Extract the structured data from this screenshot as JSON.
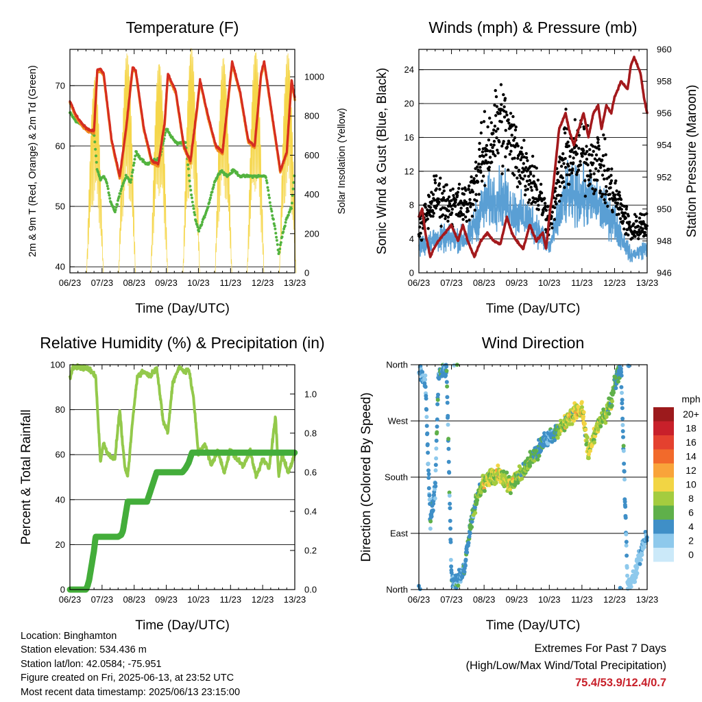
{
  "colors": {
    "temp_red": "#d62d20",
    "temp_orange": "#f08a1f",
    "dewpoint_green": "#52b33f",
    "solar_yellow": "#f5d64a",
    "wind_blue": "#5a9fd4",
    "gust_black": "#000000",
    "pressure_maroon": "#a3191c",
    "rh_green": "#93c94b",
    "precip_green": "#43ad3a",
    "extremes_red": "#c8202a"
  },
  "x_ticks": [
    "06/23",
    "07/23",
    "08/23",
    "09/23",
    "10/23",
    "11/23",
    "12/23",
    "13/23"
  ],
  "x_label": "Time (Day/UTC)",
  "chart_data": [
    {
      "type": "line",
      "title": "Temperature (F)",
      "xlabel": "Time (Day/UTC)",
      "ylabel": "2m & 9m T (Red, Orange) & 2m Td (Green)",
      "ylabel_right": "Solar Insolation (Yellow)",
      "ylim": [
        39,
        76
      ],
      "yticks": [
        40,
        50,
        60,
        70
      ],
      "ylim_right": [
        0,
        1140
      ],
      "yticks_right": [
        0,
        200,
        400,
        600,
        800,
        1000
      ],
      "x_unit": "day",
      "x_range": [
        "06/23",
        "13/23"
      ],
      "series": [
        {
          "role": "temperature_2m_9m",
          "x_days": [
            6.0,
            6.2,
            6.4,
            6.55,
            6.75,
            6.85,
            6.95,
            7.05,
            7.3,
            7.55,
            7.75,
            7.95,
            8.05,
            8.3,
            8.55,
            8.75,
            8.95,
            9.05,
            9.3,
            9.55,
            9.75,
            9.95,
            10.05,
            10.3,
            10.55,
            10.75,
            10.95,
            11.05,
            11.3,
            11.55,
            11.75,
            11.95,
            12.05,
            12.3,
            12.55,
            12.75,
            12.9,
            13.0
          ],
          "values": [
            67.5,
            65,
            63.5,
            62.8,
            62.5,
            72.5,
            72.8,
            72,
            61,
            55,
            63,
            73,
            72.5,
            63,
            57.5,
            57,
            64,
            72,
            69,
            60,
            57.5,
            66,
            71,
            65,
            60,
            59,
            69,
            74,
            69,
            61,
            60,
            72,
            74,
            65,
            56,
            59,
            71,
            68
          ]
        },
        {
          "role": "dewpoint_2m",
          "x_days": [
            6.0,
            6.2,
            6.4,
            6.6,
            6.75,
            6.85,
            6.95,
            7.05,
            7.15,
            7.25,
            7.4,
            7.6,
            7.75,
            7.9,
            8.05,
            8.2,
            8.4,
            8.6,
            8.8,
            9.0,
            9.1,
            9.3,
            9.5,
            9.6,
            9.75,
            9.9,
            10.0,
            10.1,
            10.3,
            10.5,
            10.7,
            10.9,
            11.1,
            11.3,
            11.5,
            11.7,
            11.9,
            12.1,
            12.25,
            12.4,
            12.5,
            12.6,
            12.75,
            12.9,
            13.0
          ],
          "values": [
            65.5,
            64,
            63.5,
            62.5,
            62,
            56,
            54.5,
            55,
            54,
            51,
            49,
            53,
            55,
            54,
            59,
            58,
            57,
            57.5,
            58,
            63,
            62,
            60.5,
            60.5,
            60.5,
            53,
            48,
            46,
            47,
            50,
            54,
            56,
            55,
            56,
            55,
            55,
            55,
            55,
            55,
            50,
            46,
            42,
            45,
            48,
            50,
            56
          ]
        },
        {
          "role": "solar_insolation",
          "daily_peak_x_days": [
            6.78,
            7.78,
            8.78,
            9.78,
            10.78,
            11.78,
            12.78
          ],
          "daily_peak_values": [
            1000,
            1120,
            1080,
            1150,
            1100,
            1140,
            1120
          ]
        }
      ]
    },
    {
      "type": "scatter",
      "title": "Winds (mph) & Pressure (mb)",
      "xlabel": "Time (Day/UTC)",
      "ylabel": "Sonic Wind & Gust (Blue, Black)",
      "ylabel_right": "Station Pressure (Maroon)",
      "ylim": [
        0,
        26.4
      ],
      "yticks": [
        0,
        4,
        8,
        12,
        16,
        20,
        24
      ],
      "ylim_right": [
        946,
        960
      ],
      "yticks_right": [
        946,
        948,
        950,
        952,
        954,
        956,
        958,
        960
      ],
      "x_unit": "day",
      "x_range": [
        "06/23",
        "13/23"
      ],
      "series": [
        {
          "role": "wind_envelope",
          "x_days": [
            6.0,
            6.5,
            7.0,
            7.5,
            8.0,
            8.5,
            9.0,
            9.5,
            10.0,
            10.5,
            11.0,
            11.5,
            12.0,
            12.5,
            13.0
          ],
          "values": [
            3,
            4,
            4,
            4,
            8,
            9,
            7,
            6,
            3,
            9,
            9,
            8,
            6,
            2,
            3
          ]
        },
        {
          "role": "gust_envelope",
          "x_days": [
            6.0,
            6.5,
            7.0,
            7.5,
            8.0,
            8.5,
            9.0,
            9.5,
            10.0,
            10.5,
            11.0,
            11.5,
            12.0,
            12.5,
            13.0
          ],
          "values": [
            5,
            9,
            8,
            8,
            14,
            18,
            14,
            11,
            6,
            14,
            14,
            13,
            9,
            5,
            6
          ]
        },
        {
          "role": "station_pressure",
          "x_days": [
            6.0,
            6.1,
            6.2,
            6.35,
            6.45,
            6.6,
            6.8,
            7.0,
            7.2,
            7.35,
            7.5,
            7.7,
            7.9,
            8.1,
            8.3,
            8.5,
            8.7,
            8.85,
            9.0,
            9.2,
            9.4,
            9.6,
            9.8,
            9.9,
            10.0,
            10.1,
            10.2,
            10.3,
            10.5,
            10.6,
            10.75,
            10.9,
            11.05,
            11.2,
            11.35,
            11.5,
            11.6,
            11.75,
            11.9,
            12.0,
            12.2,
            12.4,
            12.5,
            12.6,
            12.7,
            12.8,
            12.9,
            13.0
          ],
          "values": [
            949.5,
            950,
            948.5,
            947,
            947.5,
            948,
            948.5,
            949,
            948,
            949,
            948,
            947,
            948,
            948.5,
            948,
            947.8,
            949.5,
            948.5,
            948,
            947.5,
            949,
            948,
            948.5,
            947.5,
            949.5,
            951,
            953,
            955,
            956,
            955,
            954,
            955,
            956,
            954.5,
            956,
            956.5,
            955,
            956.5,
            956,
            957,
            958,
            957.5,
            959,
            959.5,
            959,
            958.5,
            957,
            956
          ]
        }
      ]
    },
    {
      "type": "line",
      "title": "Relative Humidity (%) & Precipitation (in)",
      "xlabel": "Time (Day/UTC)",
      "ylabel": "Percent & Total Rainfall",
      "ylim": [
        0,
        100
      ],
      "yticks": [
        0,
        20,
        40,
        60,
        80,
        100
      ],
      "ylim_right": [
        0,
        1.15
      ],
      "yticks_right": [
        0.0,
        0.2,
        0.4,
        0.6,
        0.8,
        1.0
      ],
      "x_unit": "day",
      "x_range": [
        "06/23",
        "13/23"
      ],
      "series": [
        {
          "role": "relative_humidity",
          "x_days": [
            6.0,
            6.1,
            6.3,
            6.6,
            6.8,
            6.95,
            7.05,
            7.2,
            7.4,
            7.55,
            7.7,
            7.8,
            7.95,
            8.1,
            8.3,
            8.5,
            8.7,
            8.9,
            9.05,
            9.2,
            9.4,
            9.55,
            9.7,
            9.85,
            10.0,
            10.2,
            10.4,
            10.6,
            10.8,
            11.0,
            11.2,
            11.4,
            11.6,
            11.8,
            12.0,
            12.2,
            12.4,
            12.5,
            12.6,
            12.8,
            13.0
          ],
          "values": [
            94,
            99,
            99,
            98,
            95,
            57,
            65,
            60,
            58,
            80,
            55,
            50,
            75,
            95,
            97,
            95,
            99,
            75,
            70,
            92,
            99,
            97,
            98,
            85,
            60,
            65,
            55,
            62,
            52,
            62,
            58,
            55,
            62,
            50,
            58,
            54,
            77,
            50,
            60,
            52,
            60
          ]
        },
        {
          "role": "total_precipitation_in",
          "x_days": [
            6.0,
            6.5,
            6.55,
            6.6,
            6.65,
            6.7,
            6.75,
            6.8,
            7.4,
            7.5,
            7.6,
            7.65,
            7.7,
            7.8,
            8.2,
            8.4,
            8.5,
            8.6,
            8.7,
            9.5,
            9.6,
            9.7,
            9.8,
            10.0,
            13.0
          ],
          "values": [
            0,
            0,
            0.02,
            0.05,
            0.1,
            0.15,
            0.2,
            0.27,
            0.27,
            0.27,
            0.28,
            0.3,
            0.35,
            0.45,
            0.45,
            0.45,
            0.5,
            0.55,
            0.6,
            0.6,
            0.62,
            0.65,
            0.7,
            0.7,
            0.7
          ]
        }
      ]
    },
    {
      "type": "scatter",
      "title": "Wind Direction",
      "xlabel": "Time (Day/UTC)",
      "ylabel": "Direction (Colored By Speed)",
      "ytick_labels": [
        "North",
        "East",
        "South",
        "West",
        "North"
      ],
      "ylim": [
        0,
        360
      ],
      "x_unit": "day",
      "x_range": [
        "06/23",
        "13/23"
      ],
      "direction_trend": {
        "x_days": [
          6.0,
          6.2,
          6.35,
          6.5,
          6.6,
          6.75,
          6.85,
          7.0,
          7.15,
          7.4,
          7.6,
          7.8,
          8.0,
          8.2,
          8.4,
          8.6,
          8.8,
          9.0,
          9.2,
          9.4,
          9.6,
          9.8,
          10.0,
          10.3,
          10.6,
          10.8,
          11.0,
          11.2,
          11.4,
          11.5,
          11.7,
          11.9,
          12.0,
          12.2,
          12.4,
          12.6,
          12.8,
          13.0
        ],
        "degrees": [
          355,
          330,
          110,
          160,
          345,
          350,
          355,
          20,
          10,
          35,
          110,
          150,
          170,
          180,
          185,
          175,
          170,
          180,
          190,
          205,
          220,
          235,
          245,
          255,
          275,
          285,
          290,
          220,
          250,
          265,
          280,
          300,
          330,
          355,
          5,
          20,
          60,
          90
        ]
      },
      "legend_title": "mph",
      "legend_labels": [
        "20+",
        "18",
        "16",
        "14",
        "12",
        "10",
        "8",
        "6",
        "4",
        "2",
        "0"
      ],
      "legend_colors": [
        "#9c1a1c",
        "#c8202a",
        "#e4412f",
        "#f26a2b",
        "#f9a43a",
        "#f2d544",
        "#a4cc3f",
        "#5fb04a",
        "#3f8fc7",
        "#8ec9ec",
        "#cbe9f9"
      ]
    }
  ],
  "info": {
    "location": "Location: Binghamton",
    "elevation": "Station elevation: 534.436 m",
    "latlon": "Station lat/lon: 42.0584; -75.951",
    "created": "Figure created on Fri, 2025-06-13, at 23:52 UTC",
    "latest": "Most recent data timestamp: 2025/06/13 23:15:00"
  },
  "extremes": {
    "title": "Extremes For Past 7 Days",
    "subtitle": "(High/Low/Max Wind/Total Precipitation)",
    "values": "75.4/53.9/12.4/0.7"
  }
}
